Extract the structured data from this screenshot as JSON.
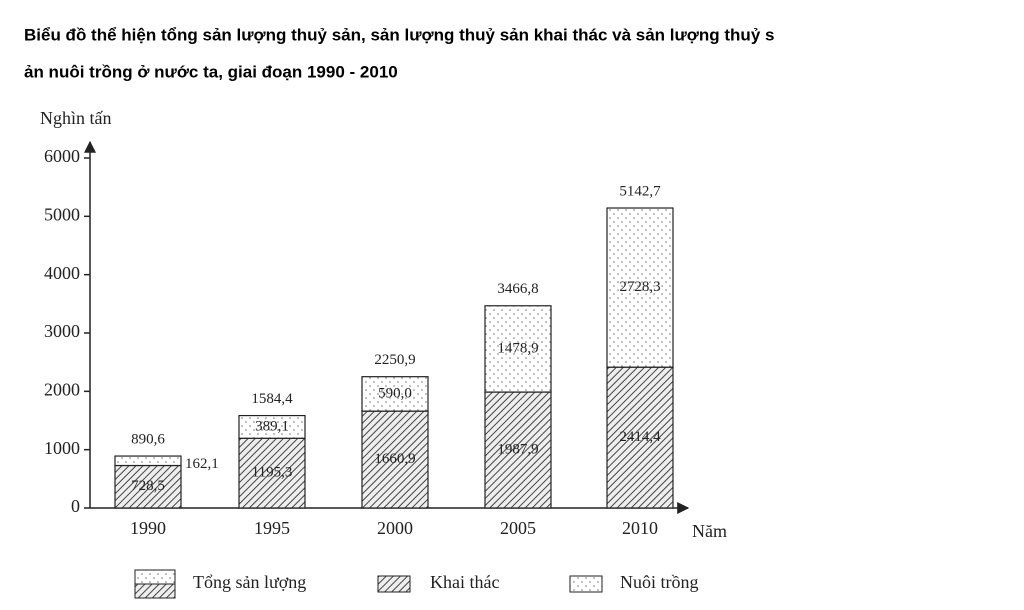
{
  "chart_data": {
    "type": "stacked_bar",
    "title_lines": [
      "Biểu đồ thể hiện tổng sản lượng thuỷ sản, sản lượng thuỷ sản khai thác và sản lượng thuỷ s",
      "ản nuôi trồng ở nước ta, giai đoạn 1990 - 2010"
    ],
    "y_label": "Nghìn tấn",
    "x_label": "Năm",
    "categories": [
      "1990",
      "1995",
      "2000",
      "2005",
      "2010"
    ],
    "series": [
      {
        "name": "Khai thác",
        "color": "#444444",
        "pattern": "hatch",
        "values": [
          728.5,
          1195.3,
          1660.9,
          1987.9,
          2414.4
        ],
        "value_labels": [
          "728,5",
          "1195,3",
          "1660,9",
          "1987,9",
          "2414,4"
        ]
      },
      {
        "name": "Nuôi trồng",
        "color": "#777777",
        "pattern": "dots",
        "values": [
          162.1,
          389.1,
          590.0,
          1478.9,
          2728.3
        ],
        "value_labels": [
          "162,1",
          "389,1",
          "590,0",
          "1478,9",
          "2728,3"
        ]
      }
    ],
    "totals": {
      "name": "Tổng sản lượng",
      "values": [
        890.6,
        1584.4,
        2250.9,
        3466.8,
        5142.7
      ],
      "value_labels": [
        "890,6",
        "1584,4",
        "2250,9",
        "3466,8",
        "5142,7"
      ]
    },
    "ylim": [
      0,
      6000
    ],
    "yticks": [
      0,
      1000,
      2000,
      3000,
      4000,
      5000,
      6000
    ]
  }
}
